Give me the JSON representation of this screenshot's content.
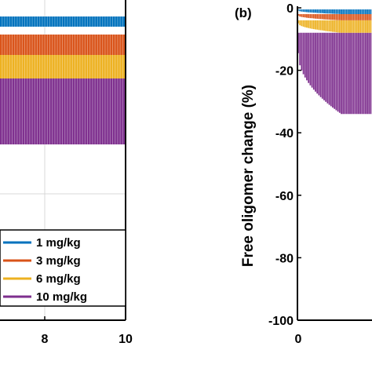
{
  "chart_data": [
    {
      "type": "line",
      "panel_label": "",
      "xlabel": "",
      "ylabel": "",
      "xlim": [
        0,
        10
      ],
      "visible_x_ticks": [
        8,
        10
      ],
      "grid": true,
      "legend_position": "bottom-right",
      "series": [
        {
          "name": "1 mg/kg",
          "color": "#0072BD",
          "dose_mg_per_kg": 1,
          "oscillation_min": -2,
          "oscillation_max": -3.5
        },
        {
          "name": "3 mg/kg",
          "color": "#D95319",
          "dose_mg_per_kg": 3,
          "oscillation_min": -7,
          "oscillation_max": -12
        },
        {
          "name": "6 mg/kg",
          "color": "#EDB120",
          "dose_mg_per_kg": 6,
          "oscillation_min": -12,
          "oscillation_max": -20
        },
        {
          "name": "10 mg/kg",
          "color": "#7E2F8E",
          "dose_mg_per_kg": 10,
          "oscillation_min": -20,
          "oscillation_max": -35
        }
      ]
    },
    {
      "type": "line",
      "panel_label": "(b)",
      "xlabel": "",
      "ylabel": "Free oligomer change (%)",
      "ylim": [
        -100,
        0
      ],
      "y_ticks": [
        0,
        -20,
        -40,
        -60,
        -80,
        -100
      ],
      "visible_x_ticks": [
        0
      ],
      "grid": false,
      "series": [
        {
          "color": "#0072BD",
          "dose_mg_per_kg": 1,
          "steady_min": -0.5,
          "steady_max": -2
        },
        {
          "color": "#D95319",
          "dose_mg_per_kg": 3,
          "steady_min": -2,
          "steady_max": -4
        },
        {
          "color": "#EDB120",
          "dose_mg_per_kg": 6,
          "steady_min": -4,
          "steady_max": -8
        },
        {
          "color": "#7E2F8E",
          "dose_mg_per_kg": 10,
          "steady_min": -8,
          "steady_max": -34
        }
      ]
    }
  ]
}
